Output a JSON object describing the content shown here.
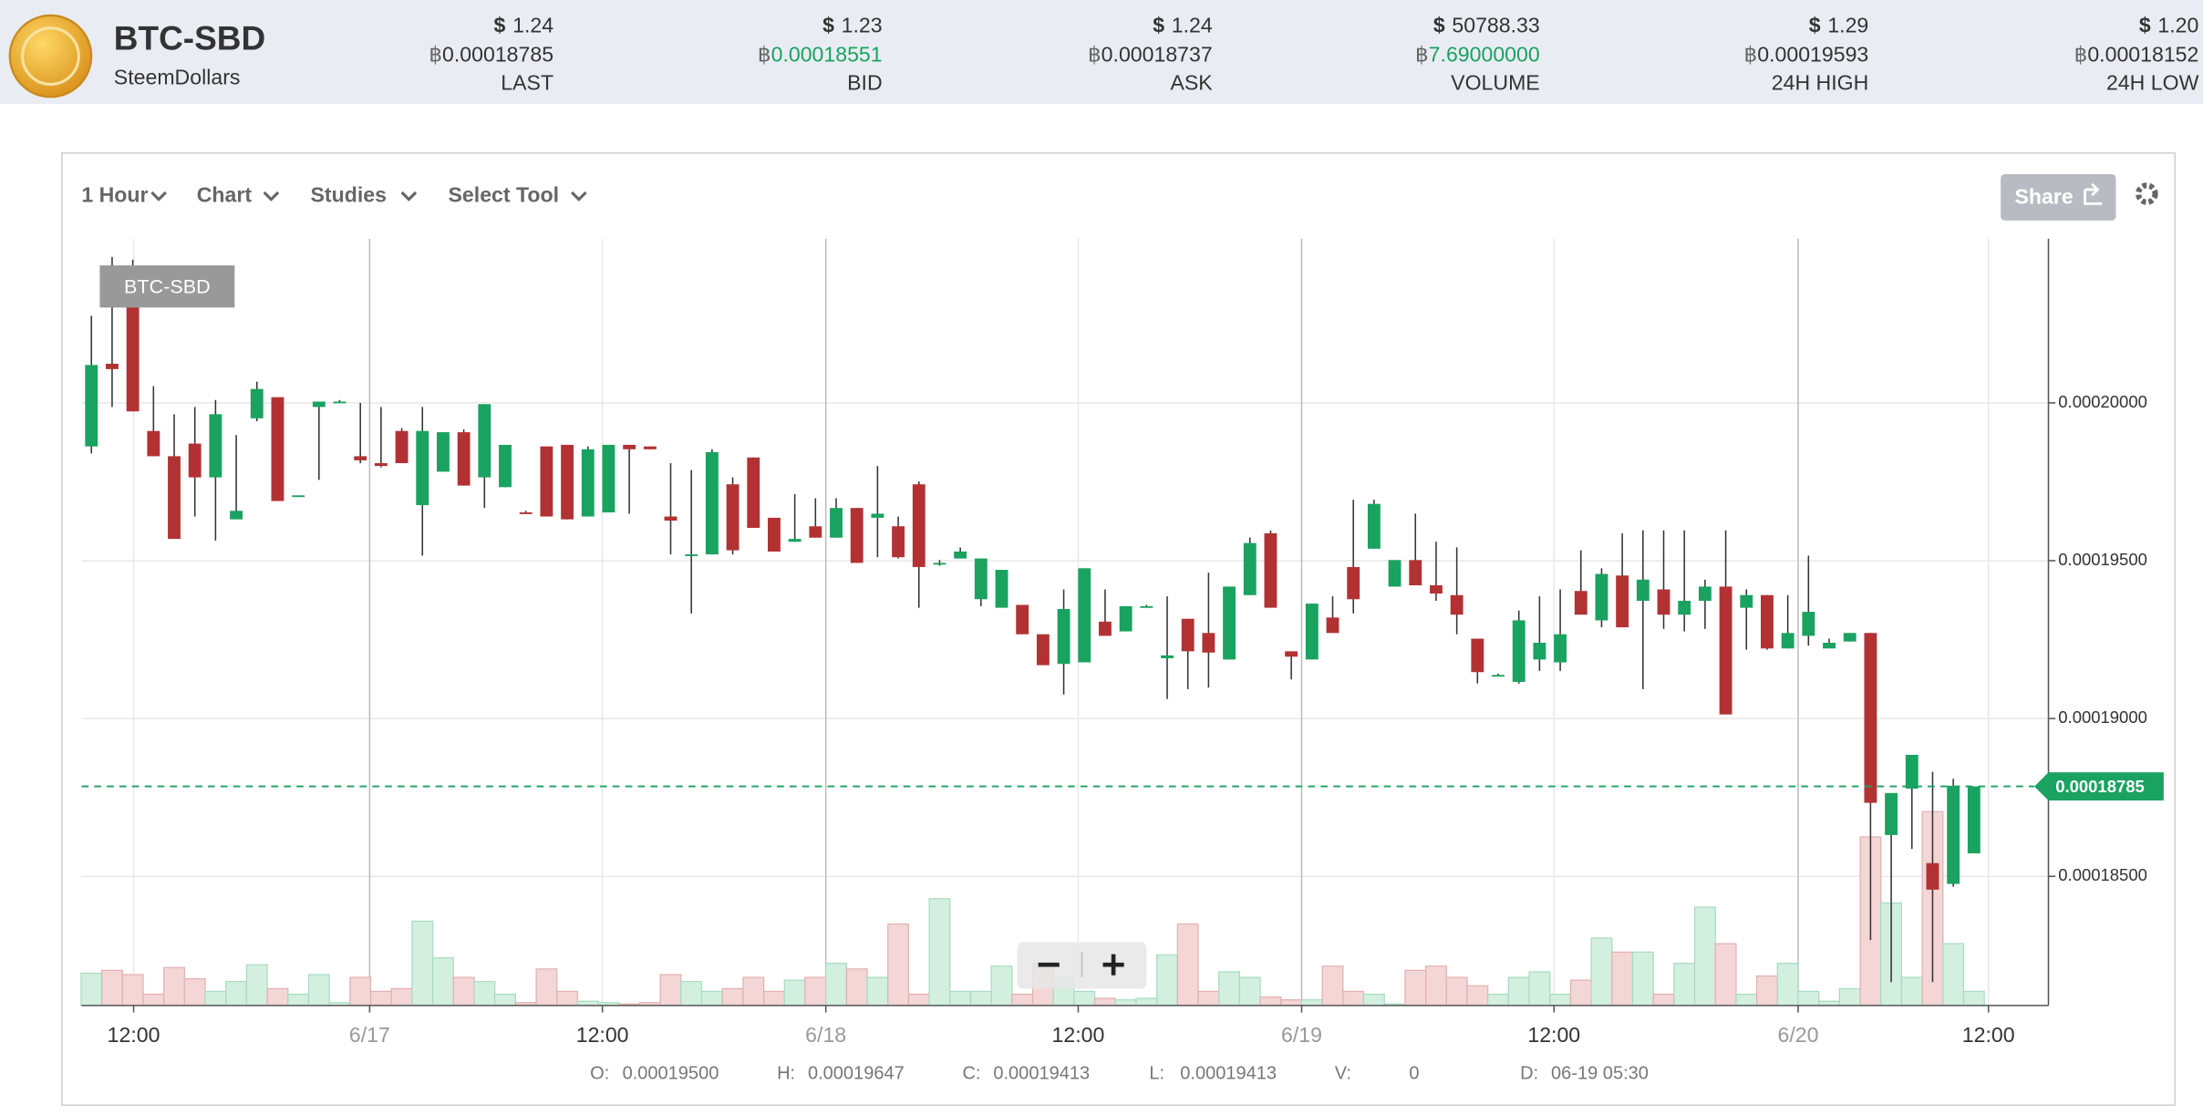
{
  "header": {
    "pair": "BTC-SBD",
    "name": "SteemDollars",
    "usd_symbol": "$",
    "btc_symbol": "฿",
    "stats": [
      {
        "usd": "1.24",
        "btc": "0.00018785",
        "label": "LAST"
      },
      {
        "usd": "1.23",
        "btc": "0.00018551",
        "label": "BID",
        "btc_color": "#1aa260"
      },
      {
        "usd": "1.24",
        "btc": "0.00018737",
        "label": "ASK"
      },
      {
        "usd": "50788.33",
        "btc": "7.69000000",
        "label": "VOLUME",
        "btc_color": "#1aa260"
      },
      {
        "usd": "1.29",
        "btc": "0.00019593",
        "label": "24H HIGH"
      },
      {
        "usd": "1.20",
        "btc": "0.00018152",
        "label": "24H LOW"
      }
    ]
  },
  "toolbar": {
    "interval": "1 Hour",
    "chart": "Chart",
    "studies": "Studies",
    "tool": "Select Tool",
    "share": "Share"
  },
  "chart_data": {
    "type": "candlestick",
    "badge": "BTC-SBD",
    "up_color": "#1aa260",
    "down_color": "#b23234",
    "open": [
      0.00019862,
      0.00020124,
      0.00020307,
      0.00019911,
      0.00019831,
      0.00019871,
      0.00019764,
      0.00019631,
      0.00019951,
      0.00020018,
      0.00019702,
      0.00019987,
      0.00020004,
      0.00019831,
      0.00019809,
      0.00019911,
      0.00019676,
      0.00019782,
      0.00019907,
      0.00019764,
      0.00019733,
      0.00019653,
      0.00019862,
      0.00019867,
      0.0001964,
      0.00019653,
      0.00019867,
      0.00019862,
      0.0001964,
      0.00019516,
      0.0001952,
      0.00019742,
      0.00019827,
      0.00019636,
      0.0001956,
      0.00019609,
      0.00019573,
      0.00019667,
      0.00019636,
      0.00019609,
      0.00019742,
      0.00019493,
      0.00019507,
      0.00019378,
      0.00019351,
      0.0001936,
      0.00019267,
      0.00019173,
      0.00019178,
      0.00019307,
      0.00019276,
      0.00019356,
      0.00019191,
      0.00019316,
      0.00019271,
      0.00019187,
      0.00019391,
      0.00019587,
      0.00019213,
      0.00019187,
      0.0001932,
      0.0001948,
      0.00019538,
      0.00019418,
      0.00019502,
      0.00019422,
      0.00019391,
      0.00019253,
      0.00019138,
      0.00019116,
      0.00019187,
      0.00019178,
      0.00019404,
      0.00019311,
      0.00019453,
      0.00019373,
      0.00019409,
      0.00019329,
      0.00019373,
      0.00019418,
      0.00019351,
      0.00019391,
      0.00019222,
      0.00019262,
      0.00019222,
      0.00019244,
      0.00019271,
      0.00018631,
      0.00018778,
      0.00018542,
      0.00018476,
      0.00018573
    ],
    "high": [
      0.00020276,
      0.00020462,
      0.00020453,
      0.00020053,
      0.00019964,
      0.00019987,
      0.00020009,
      0.00019898,
      0.00020067,
      0.00020018,
      0.00019707,
      0.00020004,
      0.00020009,
      0.0002,
      0.00019987,
      0.0001992,
      0.00019987,
      0.00019907,
      0.00019916,
      0.00019996,
      0.00019867,
      0.00019658,
      0.00019862,
      0.00019867,
      0.00019862,
      0.00019867,
      0.00019867,
      0.00019862,
      0.00019809,
      0.00019787,
      0.00019853,
      0.00019764,
      0.00019827,
      0.00019636,
      0.00019711,
      0.00019698,
      0.00019698,
      0.00019667,
      0.000198,
      0.0001964,
      0.00019751,
      0.00019502,
      0.00019542,
      0.00019507,
      0.00019471,
      0.0001936,
      0.00019267,
      0.00019409,
      0.00019476,
      0.00019409,
      0.00019356,
      0.0001936,
      0.00019387,
      0.00019316,
      0.00019462,
      0.00019418,
      0.00019573,
      0.00019596,
      0.00019213,
      0.00019364,
      0.00019387,
      0.00019693,
      0.00019693,
      0.00019502,
      0.00019649,
      0.0001956,
      0.00019542,
      0.00019253,
      0.00019142,
      0.00019342,
      0.00019387,
      0.00019409,
      0.00019533,
      0.00019476,
      0.00019587,
      0.00019596,
      0.00019596,
      0.00019596,
      0.0001944,
      0.00019596,
      0.00019409,
      0.00019391,
      0.00019391,
      0.00019516,
      0.00019253,
      0.00019271,
      0.00019271,
      0.00018764,
      0.00018885,
      0.00018831,
      0.00018809,
      0.00018785
    ],
    "low": [
      0.0001984,
      0.00019987,
      0.00019973,
      0.00019831,
      0.00019569,
      0.0001964,
      0.00019564,
      0.00019631,
      0.00019942,
      0.00019689,
      0.00019702,
      0.00019756,
      0.0002,
      0.00019809,
      0.00019796,
      0.00019809,
      0.00019516,
      0.00019782,
      0.00019738,
      0.00019667,
      0.00019733,
      0.00019649,
      0.0001964,
      0.00019631,
      0.0001964,
      0.00019653,
      0.00019649,
      0.00019853,
      0.0001952,
      0.00019333,
      0.0001952,
      0.0001952,
      0.00019604,
      0.00019529,
      0.0001956,
      0.00019573,
      0.00019573,
      0.00019493,
      0.00019511,
      0.00019507,
      0.00019351,
      0.00019484,
      0.00019507,
      0.00019356,
      0.00019351,
      0.00019267,
      0.00019169,
      0.00019076,
      0.00019178,
      0.00019262,
      0.00019276,
      0.00019351,
      0.00019062,
      0.00019093,
      0.00019098,
      0.00019187,
      0.00019391,
      0.00019351,
      0.00019124,
      0.00019187,
      0.00019271,
      0.00019333,
      0.00019538,
      0.00019418,
      0.00019422,
      0.00019373,
      0.00019267,
      0.00019111,
      0.00019133,
      0.00019111,
      0.00019151,
      0.00019151,
      0.00019329,
      0.00019289,
      0.00019289,
      0.00019093,
      0.00019284,
      0.00019276,
      0.00019284,
      0.00019013,
      0.00019218,
      0.00019218,
      0.00019222,
      0.00019231,
      0.00019222,
      0.00019244,
      0.00018298,
      0.00018165,
      0.00018587,
      0.00018165,
      0.00018467,
      0.00018573
    ],
    "close": [
      0.0002012,
      0.00020107,
      0.00019973,
      0.00019831,
      0.00019569,
      0.00019764,
      0.00019964,
      0.00019658,
      0.00020044,
      0.00019689,
      0.00019707,
      0.00020004,
      0.00020004,
      0.00019818,
      0.000198,
      0.00019809,
      0.00019911,
      0.00019907,
      0.00019738,
      0.00019996,
      0.00019867,
      0.00019649,
      0.0001964,
      0.00019631,
      0.00019853,
      0.00019867,
      0.00019853,
      0.00019853,
      0.00019627,
      0.0001952,
      0.00019844,
      0.00019533,
      0.00019604,
      0.00019529,
      0.00019569,
      0.00019573,
      0.00019667,
      0.00019493,
      0.00019649,
      0.00019511,
      0.0001948,
      0.00019493,
      0.00019529,
      0.00019507,
      0.00019471,
      0.00019267,
      0.00019169,
      0.00019347,
      0.00019476,
      0.00019262,
      0.00019356,
      0.00019356,
      0.000192,
      0.00019213,
      0.00019209,
      0.00019418,
      0.00019556,
      0.00019351,
      0.00019196,
      0.00019364,
      0.00019271,
      0.00019378,
      0.0001968,
      0.00019502,
      0.00019422,
      0.00019396,
      0.00019329,
      0.00019147,
      0.00019138,
      0.00019311,
      0.0001924,
      0.00019267,
      0.00019329,
      0.00019458,
      0.00019289,
      0.0001944,
      0.00019329,
      0.00019373,
      0.00019418,
      0.00019013,
      0.00019391,
      0.00019222,
      0.00019271,
      0.00019338,
      0.0001924,
      0.00019271,
      0.00018733,
      0.00018764,
      0.00018885,
      0.00018458,
      0.00018787,
      0.00018785
    ],
    "volume": [
      23,
      25,
      22,
      8,
      27,
      19,
      10,
      17,
      29,
      12,
      8,
      22,
      2,
      20,
      10,
      12,
      60,
      34,
      20,
      17,
      8,
      2,
      26,
      10,
      3,
      2,
      1,
      2,
      22,
      17,
      10,
      12,
      20,
      10,
      18,
      20,
      30,
      26,
      20,
      58,
      8,
      76,
      10,
      10,
      28,
      8,
      30,
      20,
      10,
      5,
      4,
      5,
      36,
      58,
      10,
      24,
      20,
      6,
      4,
      4,
      28,
      10,
      8,
      1,
      25,
      28,
      20,
      14,
      8,
      20,
      24,
      8,
      18,
      48,
      38,
      38,
      8,
      30,
      70,
      44,
      8,
      21,
      30,
      10,
      3,
      12,
      120,
      73,
      20,
      138,
      44,
      10
    ],
    "volume_ylim": [
      0,
      150
    ],
    "xlim": [
      -0.48,
      94.6
    ],
    "xticks": [
      {
        "value": 2.04,
        "label": "12:00"
      },
      {
        "value": 13.45,
        "label": "6/17"
      },
      {
        "value": 24.7,
        "label": "12:00"
      },
      {
        "value": 35.5,
        "label": "6/18"
      },
      {
        "value": 47.7,
        "label": "12:00"
      },
      {
        "value": 58.5,
        "label": "6/19"
      },
      {
        "value": 70.7,
        "label": "12:00"
      },
      {
        "value": 82.5,
        "label": "6/20"
      },
      {
        "value": 91.7,
        "label": "12:00"
      }
    ],
    "ylim": [
      0.00018091,
      0.0002052
    ],
    "yticks": [
      {
        "value": 0.000185,
        "label": "0.00018500"
      },
      {
        "value": 0.00019,
        "label": "0.00019000"
      },
      {
        "value": 0.000195,
        "label": "0.00019500"
      },
      {
        "value": 0.0002,
        "label": "0.00020000"
      }
    ],
    "last_price": {
      "value": 0.00018785,
      "label": "0.00018785"
    },
    "grid": true
  },
  "info": [
    {
      "key": "O:",
      "value": "0.00019500"
    },
    {
      "key": "H:",
      "value": "0.00019647"
    },
    {
      "key": "C:",
      "value": "0.00019413"
    },
    {
      "key": "L:",
      "value": "0.00019413"
    },
    {
      "key": "V:",
      "value": "0"
    },
    {
      "key": "D:",
      "value": "06-19 05:30"
    }
  ]
}
